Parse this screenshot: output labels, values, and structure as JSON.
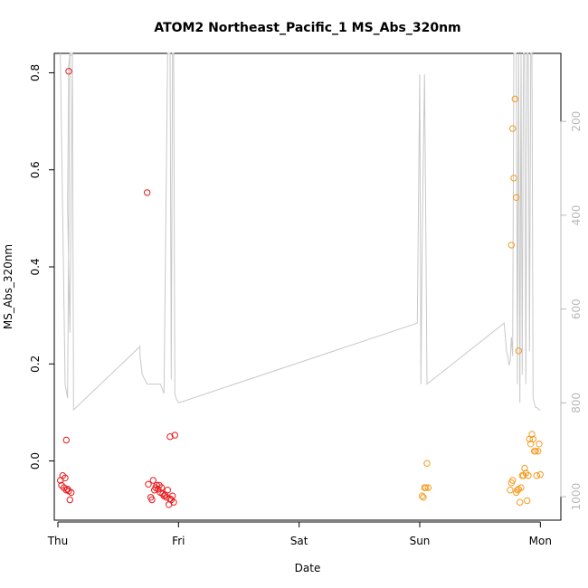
{
  "chart_data": {
    "type": "scatter",
    "title": "ATOM2 Northeast_Pacific_1 MS_Abs_320nm",
    "xlabel": "Date",
    "ylabel": "MS_Abs_320nm",
    "x_ticks": [
      "Thu",
      "Fri",
      "Sat",
      "Sun",
      "Mon"
    ],
    "xlim": [
      -0.03,
      4.17
    ],
    "ylim": [
      -0.122,
      0.84
    ],
    "y_ticks": [
      0.0,
      0.2,
      0.4,
      0.6,
      0.8
    ],
    "y_tick_labels": [
      "0.0",
      "0.2",
      "0.4",
      "0.6",
      "0.8"
    ],
    "y2": {
      "label": "",
      "reversed": true,
      "ticks": [
        200,
        400,
        600,
        800,
        1000
      ],
      "tick_labels": [
        "200",
        "400",
        "600",
        "800",
        "1000"
      ],
      "lim": [
        1050,
        55
      ],
      "color": "#b8b8b8"
    },
    "grid": false,
    "legend": "none",
    "colors": {
      "red": "#e8191b",
      "orange": "#f59a1e",
      "gray": "#c8c8c8"
    },
    "series": [
      {
        "color": "#e8191b",
        "x": [
          0.02,
          0.03,
          0.04,
          0.05,
          0.06,
          0.07,
          0.08,
          0.09,
          0.1,
          0.11,
          0.07,
          0.09,
          0.75,
          0.77,
          0.78,
          0.79,
          0.8,
          0.81,
          0.82,
          0.83,
          0.84,
          0.85,
          0.86,
          0.87,
          0.88,
          0.89,
          0.9,
          0.91,
          0.92,
          0.93,
          0.94,
          0.95,
          0.96,
          0.74,
          0.93,
          0.97
        ],
        "y": [
          -0.04,
          -0.05,
          -0.03,
          -0.055,
          -0.035,
          -0.06,
          -0.058,
          -0.062,
          -0.08,
          -0.065,
          0.043,
          0.803,
          -0.048,
          -0.075,
          -0.08,
          -0.04,
          -0.06,
          -0.055,
          -0.05,
          -0.058,
          -0.05,
          -0.065,
          -0.055,
          -0.068,
          -0.072,
          -0.07,
          -0.075,
          -0.06,
          -0.09,
          -0.078,
          -0.08,
          -0.072,
          -0.085,
          0.553,
          0.05,
          0.053
        ]
      },
      {
        "color": "#f59a1e",
        "x": [
          3.02,
          3.03,
          3.04,
          3.05,
          3.06,
          3.07,
          3.75,
          3.76,
          3.77,
          3.8,
          3.81,
          3.82,
          3.83,
          3.84,
          3.85,
          3.86,
          3.87,
          3.88,
          3.89,
          3.9,
          3.91,
          3.92,
          3.93,
          3.94,
          3.95,
          3.96,
          3.97,
          3.98,
          3.99,
          4.0,
          3.76,
          3.77,
          3.78,
          3.79,
          3.8,
          3.82
        ],
        "y": [
          -0.072,
          -0.075,
          -0.055,
          -0.055,
          -0.005,
          -0.055,
          -0.06,
          -0.045,
          -0.04,
          -0.065,
          -0.06,
          -0.058,
          -0.085,
          -0.055,
          -0.03,
          -0.03,
          -0.015,
          -0.025,
          -0.082,
          -0.03,
          0.045,
          0.035,
          0.055,
          0.045,
          0.02,
          0.02,
          -0.03,
          0.02,
          0.035,
          -0.028,
          0.445,
          0.685,
          0.583,
          0.746,
          0.543,
          0.227
        ]
      }
    ],
    "line_series": {
      "color": "#c8c8c8",
      "axis": "right",
      "segments": [
        {
          "x": [
            0.02,
            0.04,
            0.06,
            0.08,
            0.1,
            0.11,
            0.12,
            0.1,
            0.08,
            0.09,
            0.1,
            0.11,
            0.12,
            0.13,
            0.68,
            0.68,
            0.69,
            0.7,
            0.72,
            0.74,
            0.85,
            0.88,
            0.91,
            0.93,
            0.94,
            0.95,
            0.96,
            0.97,
            0.98,
            0.99,
            1.0
          ],
          "y": [
            55,
            400,
            760,
            790,
            55,
            55,
            55,
            650,
            380,
            80,
            55,
            60,
            60,
            815,
            680,
            700,
            720,
            740,
            750,
            760,
            760,
            780,
            55,
            55,
            750,
            55,
            55,
            780,
            790,
            795,
            800
          ]
        },
        {
          "x": [
            1.0,
            2.98,
            3.0,
            3.01,
            3.02,
            3.03,
            3.04,
            3.05,
            3.06,
            3.7,
            3.72,
            3.73,
            3.74,
            3.75,
            3.76,
            3.77,
            3.78,
            3.79,
            3.8,
            3.81,
            3.82,
            3.83,
            3.84,
            3.85,
            3.86,
            3.87,
            3.88,
            3.89,
            3.9,
            3.91,
            3.92,
            3.93,
            3.94,
            3.95,
            3.96,
            3.97,
            3.98,
            3.99,
            4.0
          ],
          "y": [
            800,
            630,
            100,
            760,
            460,
            270,
            100,
            420,
            760,
            630,
            690,
            700,
            720,
            710,
            660,
            700,
            55,
            55,
            55,
            760,
            55,
            800,
            55,
            740,
            55,
            55,
            760,
            55,
            55,
            690,
            55,
            55,
            790,
            800,
            810,
            810,
            812,
            815,
            815
          ]
        }
      ]
    }
  }
}
